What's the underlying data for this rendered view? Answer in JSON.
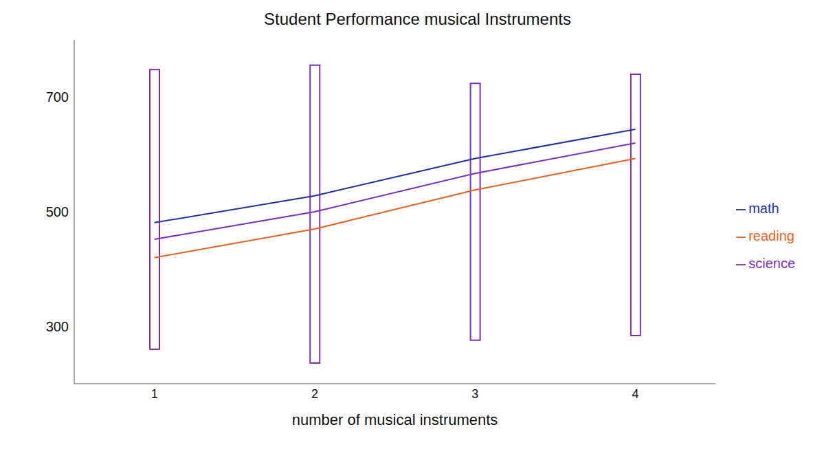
{
  "chart_data": {
    "type": "line",
    "title": "Student Performance musical Instruments",
    "x_label": "number of musical instruments",
    "categories": [
      "1",
      "2",
      "3",
      "4"
    ],
    "series": [
      {
        "name": "math",
        "color": "#1f2fa8",
        "values": [
          481,
          528,
          593,
          644
        ]
      },
      {
        "name": "reading",
        "color": "#e8601c",
        "values": [
          420,
          470,
          538,
          593
        ]
      },
      {
        "name": "science",
        "color": "#7b2fbf",
        "values": [
          452,
          500,
          567,
          620
        ]
      }
    ],
    "ranges": {
      "low": [
        260,
        236,
        276,
        284
      ],
      "high": [
        748,
        756,
        724,
        740
      ],
      "color": "#7b2fbf"
    },
    "ylim": [
      200,
      800
    ],
    "yticks": [
      300,
      500,
      700
    ],
    "grid": false,
    "legend": "right"
  }
}
